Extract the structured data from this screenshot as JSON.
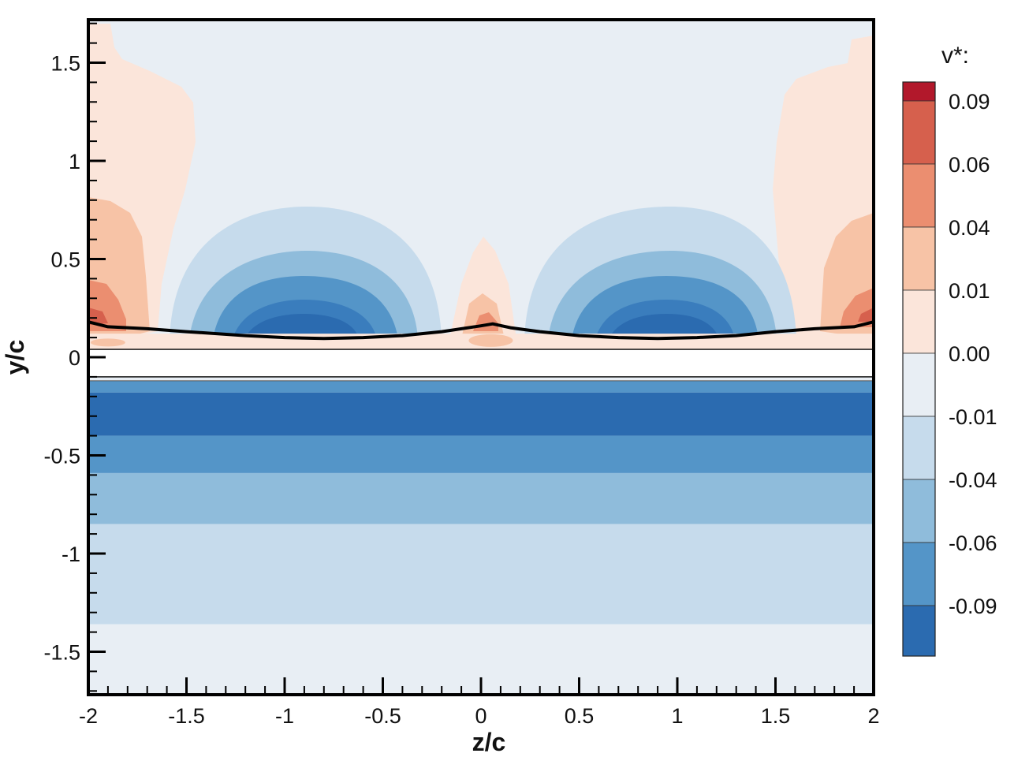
{
  "chart_data": {
    "type": "heatmap",
    "title": "",
    "xlabel": "z/c",
    "ylabel": "y/c",
    "xlim": [
      -2,
      2
    ],
    "ylim": [
      -1.72,
      1.72
    ],
    "x_ticks": [
      -2,
      -1.5,
      -1,
      -0.5,
      0,
      0.5,
      1,
      1.5,
      2
    ],
    "x_tick_labels": [
      "-2",
      "-1.5",
      "-1",
      "-0.5",
      "0",
      "0.5",
      "1",
      "1.5",
      "2"
    ],
    "y_ticks": [
      1.5,
      1,
      0.5,
      0,
      -0.5,
      -1,
      -1.5
    ],
    "y_tick_labels": [
      "1.5",
      "1",
      "0.5",
      "0",
      "-0.5",
      "-1",
      "-1.5"
    ],
    "grid": false,
    "legend": "right",
    "colorbar": {
      "title": "v*:",
      "levels": [
        0.09,
        0.06,
        0.04,
        0.01,
        0.0,
        -0.01,
        -0.04,
        -0.06,
        -0.09
      ],
      "level_labels": [
        "0.09",
        "0.06",
        "0.04",
        "0.01",
        "0.00",
        "-0.01",
        "-0.04",
        "-0.06",
        "-0.09"
      ],
      "colors": [
        "#b2182b",
        "#d6604d",
        "#eb8e70",
        "#f7c3a6",
        "#fbe5da",
        "#e8eef4",
        "#c6dbec",
        "#8fbcdb",
        "#5495c8",
        "#2b6bb0"
      ]
    },
    "bands_lower": [
      {
        "y_top": -0.12,
        "y_bottom": -0.18,
        "v": -0.07
      },
      {
        "y_top": -0.18,
        "y_bottom": -0.4,
        "v": -0.1
      },
      {
        "y_top": -0.4,
        "y_bottom": -0.59,
        "v": -0.075
      },
      {
        "y_top": -0.59,
        "y_bottom": -0.85,
        "v": -0.05
      },
      {
        "y_top": -0.85,
        "y_bottom": -1.36,
        "v": -0.02
      },
      {
        "y_top": -1.36,
        "y_bottom": -1.72,
        "v": -0.005
      }
    ],
    "black_line": {
      "z": [
        -2,
        -1.9,
        -1.7,
        -1.5,
        -1.2,
        -1.0,
        -0.8,
        -0.6,
        -0.4,
        -0.2,
        0,
        0.06,
        0.15,
        0.3,
        0.5,
        0.7,
        0.9,
        1.1,
        1.3,
        1.5,
        1.7,
        1.9,
        2
      ],
      "y": [
        0.18,
        0.155,
        0.145,
        0.13,
        0.11,
        0.1,
        0.095,
        0.1,
        0.11,
        0.13,
        0.16,
        0.17,
        0.15,
        0.13,
        0.11,
        0.1,
        0.095,
        0.1,
        0.11,
        0.13,
        0.145,
        0.155,
        0.18
      ]
    },
    "plate": {
      "y_top": 0.04,
      "y_bottom": -0.1
    }
  }
}
